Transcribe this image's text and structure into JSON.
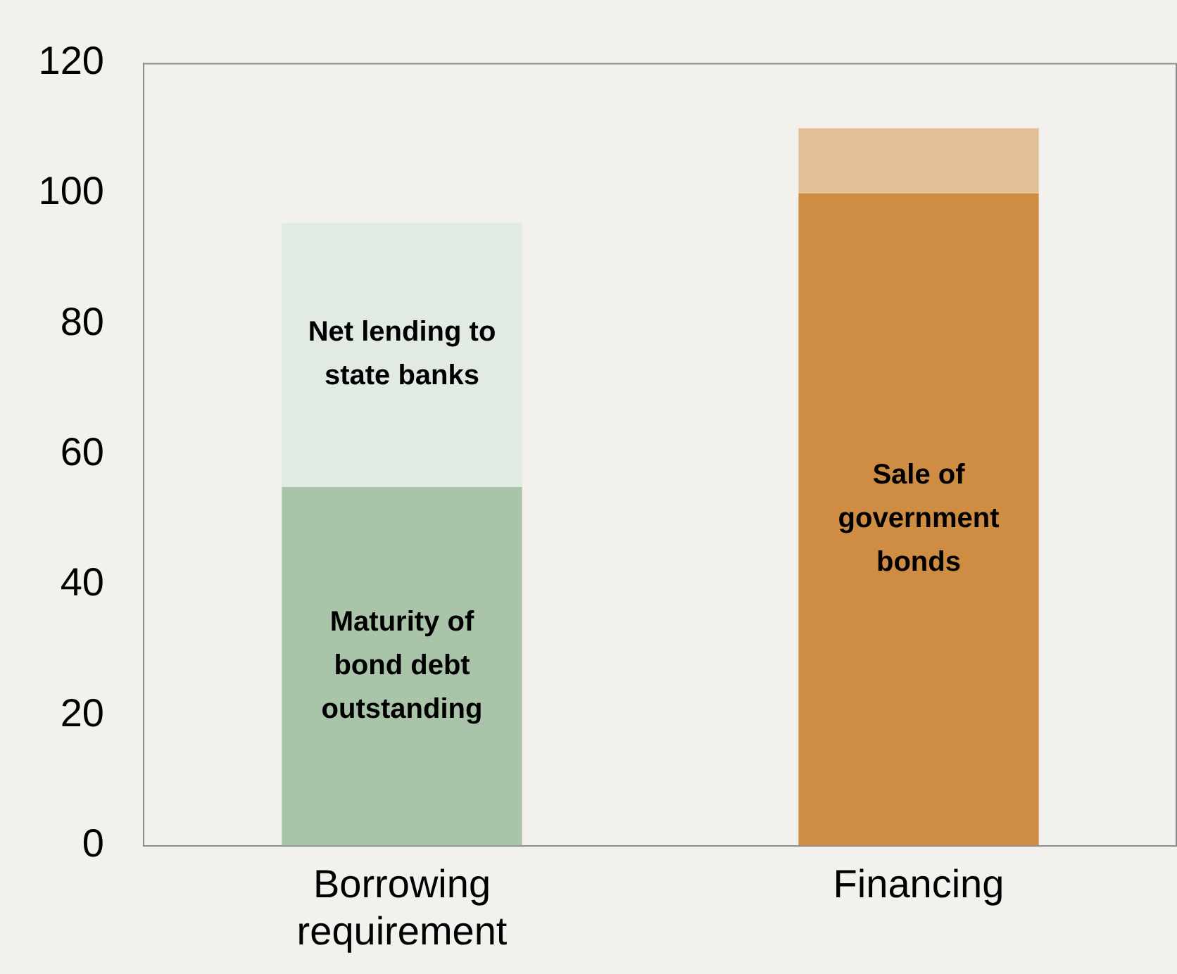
{
  "chart_data": {
    "type": "bar",
    "stacked": true,
    "categories": [
      "Borrowing requirement",
      "Financing"
    ],
    "ylim": [
      0,
      120
    ],
    "yticks": [
      0,
      20,
      40,
      60,
      80,
      100,
      120
    ],
    "series": [
      {
        "name": "Maturity of bond debt outstanding",
        "color": "#a9c4a8",
        "values": [
          55,
          null
        ]
      },
      {
        "name": "Net lending to state banks",
        "color": "#e2ebe3",
        "values": [
          40.5,
          null
        ]
      },
      {
        "name": "Sale of government bonds",
        "color": "#cf8c43",
        "values": [
          null,
          100
        ]
      },
      {
        "color": "#e2bf95",
        "values": [
          null,
          10
        ]
      }
    ]
  }
}
